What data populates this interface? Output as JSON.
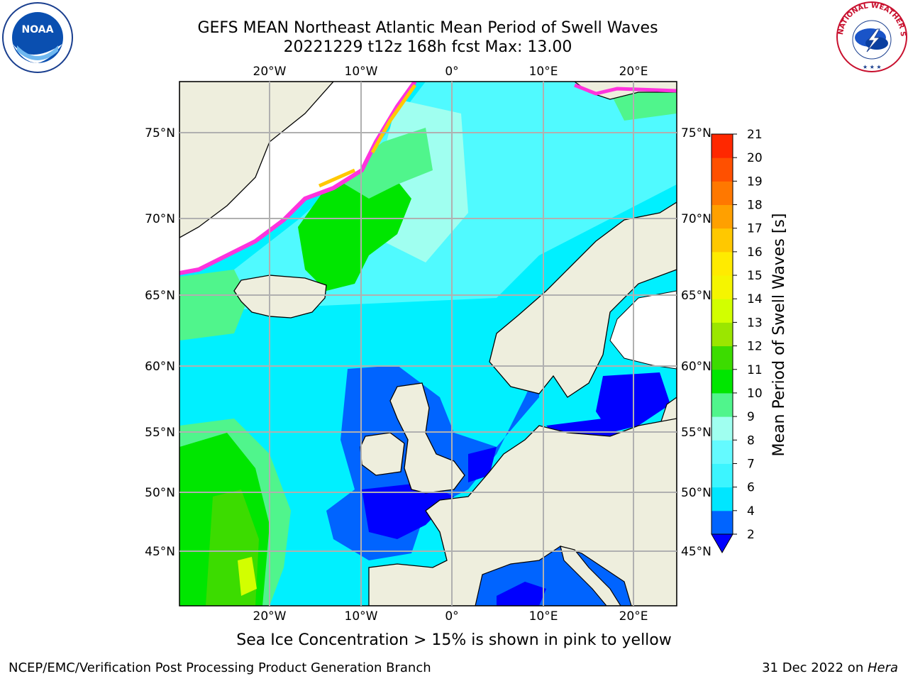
{
  "header": {
    "title_line1": "GEFS MEAN Northeast Atlantic Mean Period of Swell Waves",
    "title_line2": "20221229 t12z 168h fcst   Max: 13.00"
  },
  "map": {
    "lon_labels": [
      "20°W",
      "10°W",
      "0°",
      "10°E",
      "20°E"
    ],
    "lat_labels": [
      "75°N",
      "70°N",
      "65°N",
      "60°N",
      "55°N",
      "50°N",
      "45°N"
    ]
  },
  "colorbar": {
    "label": "Mean Period of Swell Waves [s]",
    "ticks": [
      "2",
      "4",
      "6",
      "7",
      "8",
      "9",
      "10",
      "11",
      "12",
      "13",
      "14",
      "15",
      "16",
      "17",
      "18",
      "19",
      "20",
      "21"
    ],
    "colors": [
      "#0064ff",
      "#00e6ff",
      "#3cf5ff",
      "#64faff",
      "#a0fff0",
      "#50f58c",
      "#00e600",
      "#3cdc00",
      "#9be600",
      "#d2ff00",
      "#f5f500",
      "#ffeb00",
      "#ffc800",
      "#ffa000",
      "#ff7800",
      "#ff5000",
      "#ff2800",
      "#ff0000"
    ],
    "extend_color": "#0000ff"
  },
  "note": "Sea Ice Concentration > 15% is shown in pink to yellow",
  "footer": {
    "left": "NCEP/EMC/Verification Post Processing Product Generation Branch",
    "right_date": "31 Dec 2022 on ",
    "right_machine": "Hera"
  },
  "logos": {
    "noaa_text": "NOAA",
    "nws_text": "NATIONAL WEATHER SERVICE"
  }
}
